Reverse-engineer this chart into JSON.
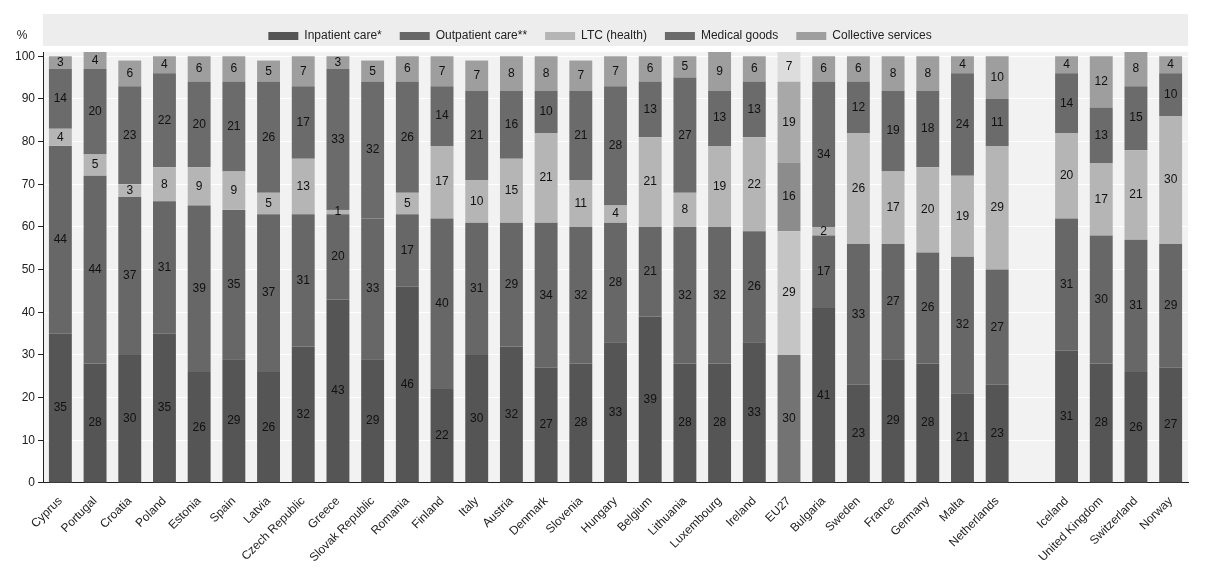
{
  "chart_data": {
    "type": "bar",
    "stacked": true,
    "ylabel": "%",
    "ylim": [
      0,
      101
    ],
    "yticks": [
      0,
      10,
      20,
      30,
      40,
      50,
      60,
      70,
      80,
      90,
      100
    ],
    "grid": "y",
    "legend": "top",
    "data_labels": true,
    "categories": [
      "Cyprus",
      "Portugal",
      "Croatia",
      "Poland",
      "Estonia",
      "Spain",
      "Latvia",
      "Czech Republic",
      "Greece",
      "Slovak Republic",
      "Romania",
      "Finland",
      "Italy",
      "Austria",
      "Denmark",
      "Slovenia",
      "Hungary",
      "Belgium",
      "Lithuania",
      "Luxembourg",
      "Ireland",
      "EU27",
      "Bulgaria",
      "Sweden",
      "France",
      "Germany",
      "Malta",
      "Netherlands",
      null,
      "Iceland",
      "United Kingdom",
      "Switzerland",
      "Norway"
    ],
    "series": [
      {
        "name": "Inpatient care*",
        "color": "#555555",
        "colors": [
          "#555555",
          "#555555",
          "#555555",
          "#555555",
          "#555555",
          "#555555",
          "#555555",
          "#555555",
          "#555555",
          "#555555",
          "#555555",
          "#555555",
          "#555555",
          "#555555",
          "#555555",
          "#555555",
          "#555555",
          "#555555",
          "#555555",
          "#555555",
          "#555555",
          "#737373",
          "#555555",
          "#555555",
          "#555555",
          "#555555",
          "#555555",
          "#555555",
          "#555555",
          "#555555",
          "#555555",
          "#555555",
          "#555555"
        ],
        "values": [
          35,
          28,
          30,
          35,
          26,
          29,
          26,
          32,
          43,
          29,
          46,
          22,
          30,
          32,
          27,
          28,
          33,
          39,
          28,
          28,
          33,
          30,
          41,
          23,
          29,
          28,
          21,
          23,
          null,
          31,
          28,
          26,
          27
        ]
      },
      {
        "name": "Outpatient care**",
        "color": "#676767",
        "colors": [
          "#676767",
          "#676767",
          "#676767",
          "#676767",
          "#676767",
          "#676767",
          "#676767",
          "#676767",
          "#676767",
          "#676767",
          "#676767",
          "#676767",
          "#676767",
          "#676767",
          "#676767",
          "#676767",
          "#676767",
          "#676767",
          "#676767",
          "#676767",
          "#676767",
          "#c4c4c4",
          "#676767",
          "#676767",
          "#676767",
          "#676767",
          "#676767",
          "#676767",
          "#676767",
          "#676767",
          "#676767",
          "#676767",
          "#676767"
        ],
        "values": [
          44,
          44,
          37,
          31,
          39,
          35,
          37,
          31,
          20,
          33,
          17,
          40,
          31,
          29,
          34,
          32,
          28,
          21,
          32,
          32,
          26,
          29,
          17,
          33,
          27,
          26,
          32,
          27,
          null,
          31,
          30,
          31,
          29
        ]
      },
      {
        "name": "LTC (health)",
        "color": "#b5b5b5",
        "colors": [
          "#b5b5b5",
          "#b5b5b5",
          "#b5b5b5",
          "#b5b5b5",
          "#b5b5b5",
          "#b5b5b5",
          "#b5b5b5",
          "#b5b5b5",
          "#b5b5b5",
          "#b5b5b5",
          "#b5b5b5",
          "#b5b5b5",
          "#b5b5b5",
          "#b5b5b5",
          "#b5b5b5",
          "#b5b5b5",
          "#b5b5b5",
          "#b5b5b5",
          "#b5b5b5",
          "#b5b5b5",
          "#b5b5b5",
          "#8c8c8c",
          "#b5b5b5",
          "#b5b5b5",
          "#b5b5b5",
          "#b5b5b5",
          "#b5b5b5",
          "#b5b5b5",
          "#b5b5b5",
          "#b5b5b5",
          "#b5b5b5",
          "#b5b5b5",
          "#b5b5b5"
        ],
        "values": [
          4,
          5,
          3,
          8,
          9,
          9,
          5,
          13,
          1,
          null,
          5,
          17,
          10,
          15,
          21,
          11,
          4,
          21,
          8,
          19,
          22,
          16,
          2,
          26,
          17,
          20,
          19,
          29,
          null,
          20,
          17,
          21,
          30
        ]
      },
      {
        "name": "Medical goods",
        "color": "#6b6b6b",
        "colors": [
          "#6b6b6b",
          "#6b6b6b",
          "#6b6b6b",
          "#6b6b6b",
          "#6b6b6b",
          "#6b6b6b",
          "#6b6b6b",
          "#6b6b6b",
          "#6b6b6b",
          "#6b6b6b",
          "#6b6b6b",
          "#6b6b6b",
          "#6b6b6b",
          "#6b6b6b",
          "#6b6b6b",
          "#6b6b6b",
          "#6b6b6b",
          "#6b6b6b",
          "#6b6b6b",
          "#6b6b6b",
          "#6b6b6b",
          "#a8a8a8",
          "#6b6b6b",
          "#6b6b6b",
          "#6b6b6b",
          "#6b6b6b",
          "#6b6b6b",
          "#6b6b6b",
          "#6b6b6b",
          "#6b6b6b",
          "#6b6b6b",
          "#6b6b6b",
          "#6b6b6b"
        ],
        "values": [
          14,
          20,
          23,
          22,
          20,
          21,
          26,
          17,
          33,
          32,
          26,
          14,
          21,
          16,
          10,
          21,
          28,
          13,
          27,
          13,
          13,
          19,
          34,
          12,
          19,
          18,
          24,
          11,
          null,
          14,
          13,
          15,
          10
        ]
      },
      {
        "name": "Collective services",
        "color": "#9e9e9e",
        "colors": [
          "#9e9e9e",
          "#9e9e9e",
          "#9e9e9e",
          "#9e9e9e",
          "#9e9e9e",
          "#9e9e9e",
          "#9e9e9e",
          "#9e9e9e",
          "#9e9e9e",
          "#9e9e9e",
          "#9e9e9e",
          "#9e9e9e",
          "#9e9e9e",
          "#9e9e9e",
          "#9e9e9e",
          "#9e9e9e",
          "#9e9e9e",
          "#9e9e9e",
          "#9e9e9e",
          "#9e9e9e",
          "#9e9e9e",
          "#dcdcdc",
          "#9e9e9e",
          "#9e9e9e",
          "#9e9e9e",
          "#9e9e9e",
          "#9e9e9e",
          "#9e9e9e",
          "#9e9e9e",
          "#9e9e9e",
          "#9e9e9e",
          "#9e9e9e",
          "#9e9e9e"
        ],
        "values": [
          3,
          4,
          6,
          4,
          6,
          6,
          5,
          7,
          3,
          5,
          6,
          7,
          7,
          8,
          8,
          7,
          7,
          6,
          5,
          9,
          6,
          7,
          6,
          6,
          8,
          8,
          4,
          10,
          null,
          4,
          12,
          8,
          4
        ]
      }
    ]
  }
}
